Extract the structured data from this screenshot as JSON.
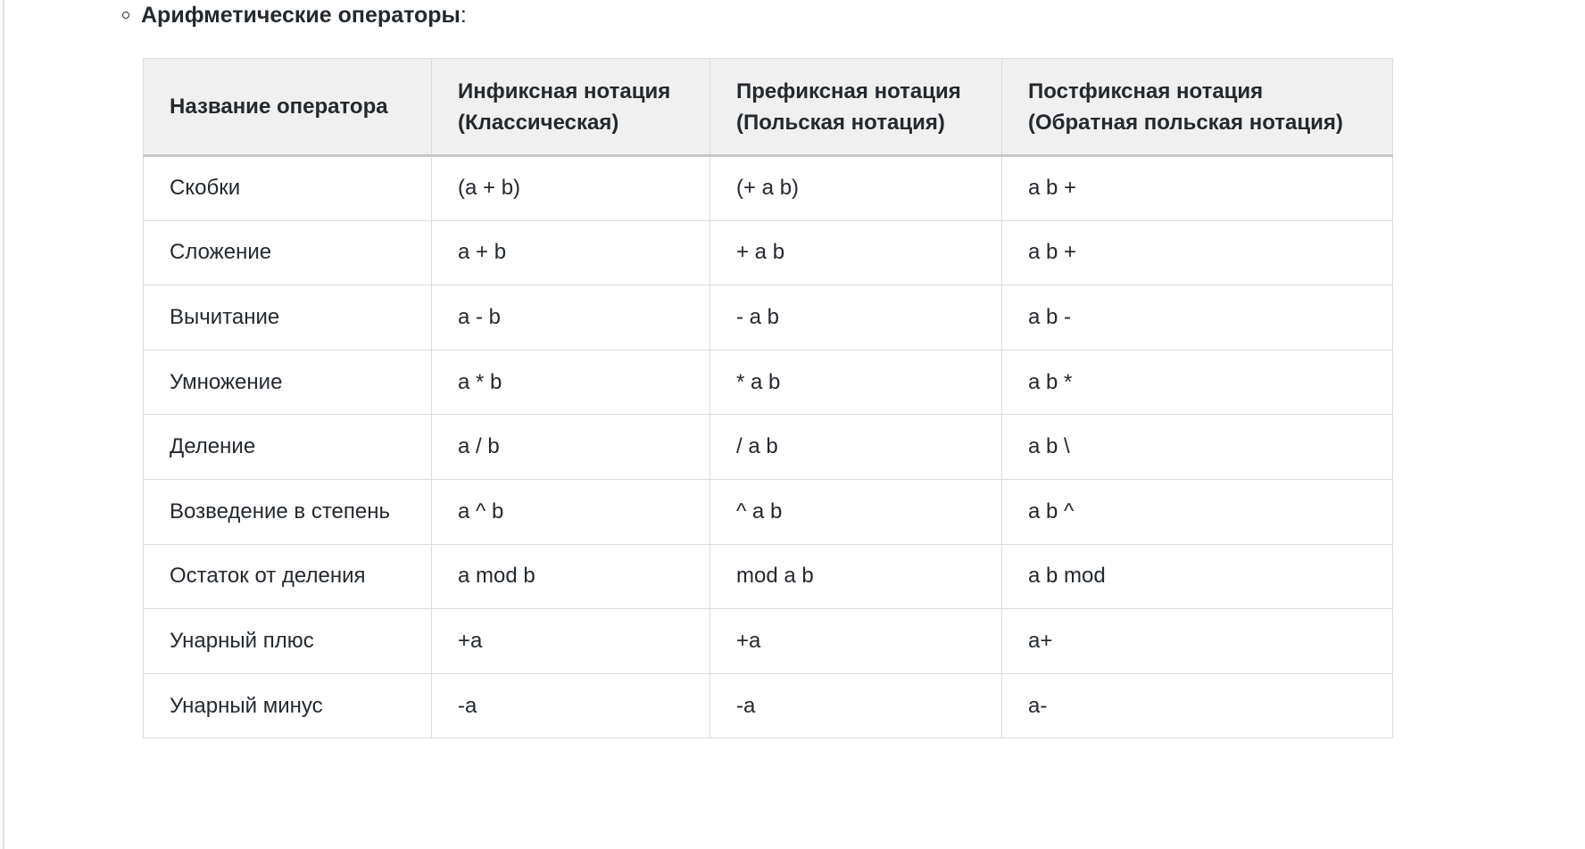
{
  "heading": {
    "text": "Арифметические операторы",
    "colon": ":"
  },
  "table": {
    "headers": [
      [
        "Название оператора"
      ],
      [
        "Инфиксная нотация",
        "(Классическая)"
      ],
      [
        "Префиксная нотация",
        "(Польская нотация)"
      ],
      [
        "Постфиксная нотация",
        "(Обратная польская нотация)"
      ]
    ],
    "rows": [
      [
        "Скобки",
        "(a + b)",
        "(+ a b)",
        "a b +"
      ],
      [
        "Сложение",
        "a + b",
        "+ a b",
        "a b +"
      ],
      [
        "Вычитание",
        "a - b",
        "- a b",
        "a b -"
      ],
      [
        "Умножение",
        "a * b",
        "* a b",
        "a b *"
      ],
      [
        "Деление",
        "a / b",
        "/ a b",
        "a b \\"
      ],
      [
        "Возведение в степень",
        "a ^ b",
        "^ a b",
        "a b ^"
      ],
      [
        "Остаток от деления",
        "a mod b",
        "mod a b",
        "a b mod"
      ],
      [
        "Унарный плюс",
        "+a",
        "+a",
        "a+"
      ],
      [
        "Унарный минус",
        "-a",
        "-a",
        "a-"
      ]
    ]
  }
}
